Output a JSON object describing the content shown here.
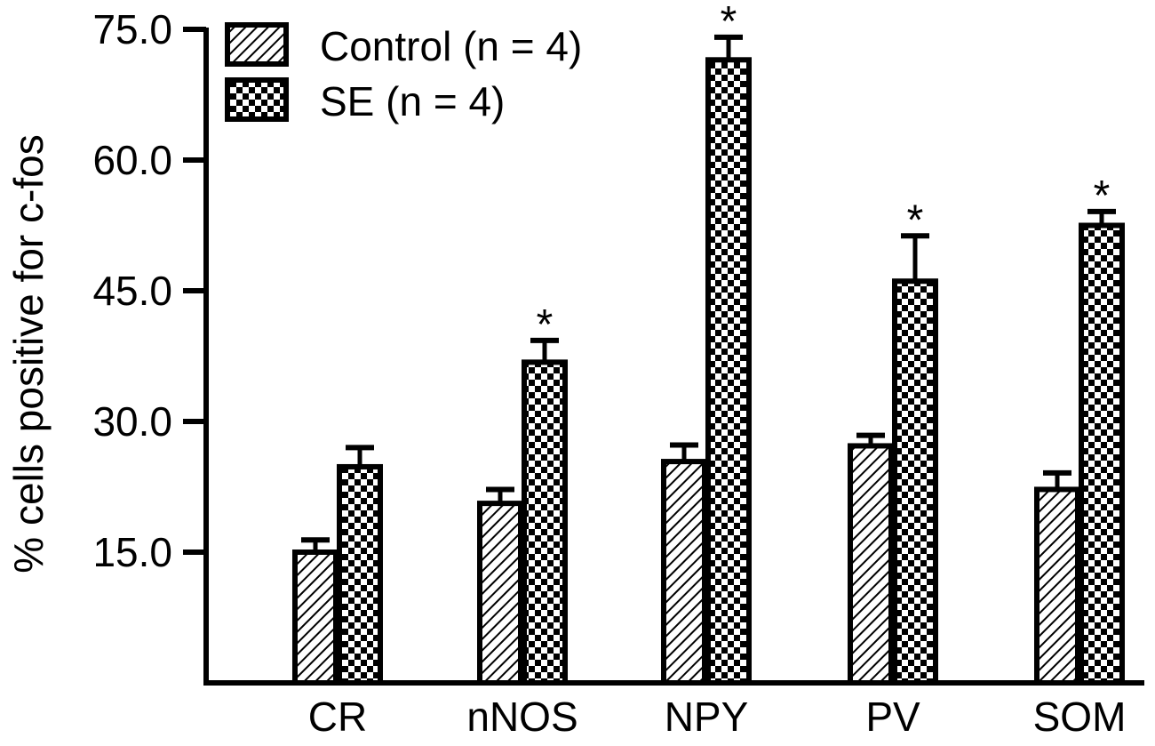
{
  "chart_data": {
    "type": "bar",
    "title": "",
    "xlabel": "",
    "ylabel": "% cells positive for c-fos",
    "ylim": [
      0,
      75
    ],
    "yticks": [
      "15.0",
      "30.0",
      "45.0",
      "60.0",
      "75.0"
    ],
    "ytick_values": [
      15,
      30,
      45,
      60,
      75
    ],
    "categories": [
      "CR",
      "nNOS",
      "NPY",
      "PV",
      "SOM"
    ],
    "series": [
      {
        "name": "Control (n = 4)",
        "pattern": "diagonal-hatch",
        "values": [
          15.0,
          20.6,
          25.4,
          27.2,
          22.2
        ],
        "errors": [
          1.4,
          1.6,
          1.9,
          1.2,
          1.9
        ],
        "significance": [
          "",
          "",
          "",
          "",
          ""
        ]
      },
      {
        "name": "SE (n = 4)",
        "pattern": "checkerboard",
        "values": [
          24.8,
          36.8,
          71.5,
          46.1,
          52.5
        ],
        "errors": [
          2.2,
          2.5,
          2.6,
          5.2,
          1.6
        ],
        "significance": [
          "",
          "*",
          "*",
          "*",
          "*"
        ]
      }
    ],
    "legend_position": "top-left",
    "grid": false,
    "colors": {
      "ink": "#000000",
      "background": "#ffffff"
    }
  }
}
